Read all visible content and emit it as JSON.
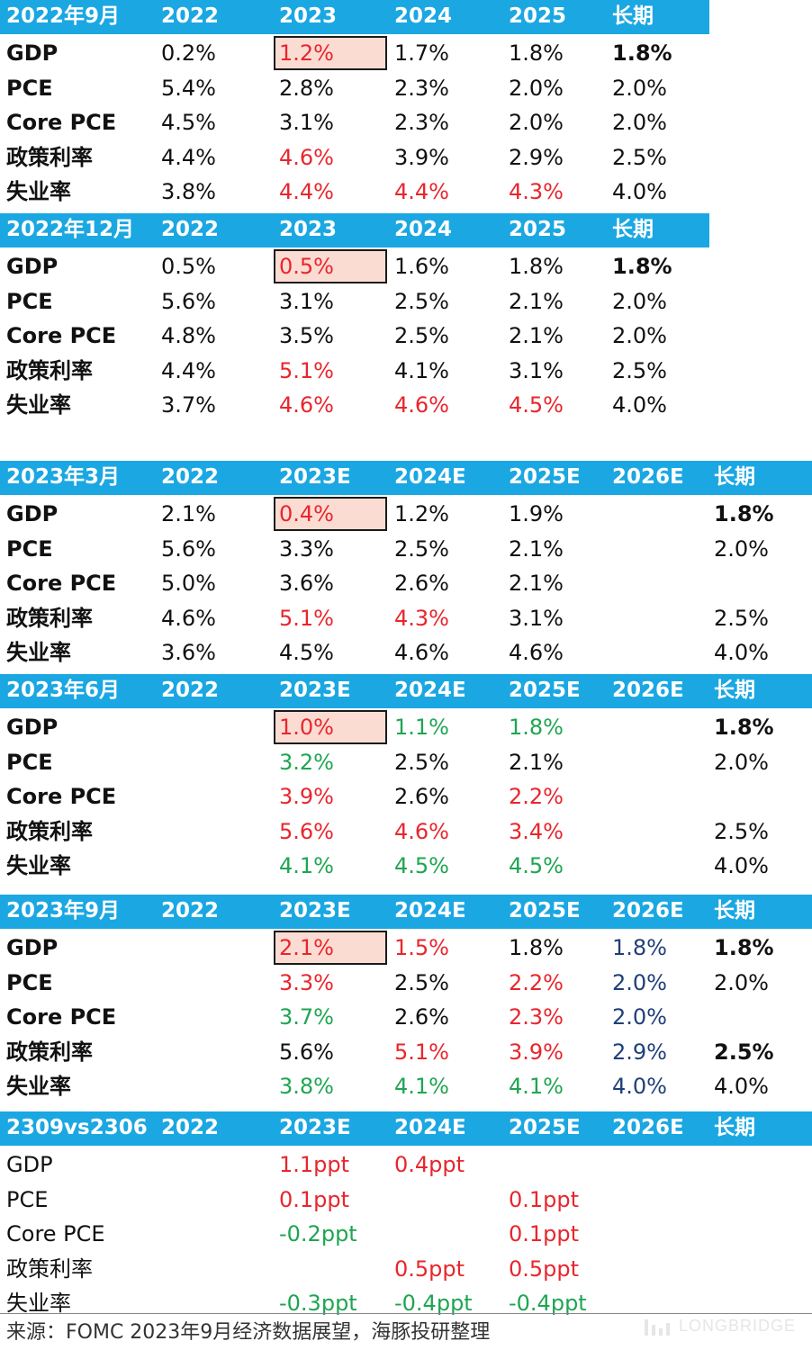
{
  "colors": {
    "header_bg": "#1ba7e2",
    "red": "#e8262d",
    "green": "#1fa552",
    "navy": "#1f3f7a",
    "highlight_fill": "#fbdcd3"
  },
  "tables": [
    {
      "header": [
        "2022年9月",
        "2022",
        "2023",
        "2024",
        "2025",
        "长期"
      ],
      "rows": [
        {
          "label": "GDP",
          "cells": [
            {
              "v": "0.2%"
            },
            {
              "v": "1.2%",
              "c": "red"
            },
            {
              "v": "1.7%"
            },
            {
              "v": "1.8%"
            },
            {
              "v": "1.8%",
              "b": true
            }
          ]
        },
        {
          "label": "PCE",
          "cells": [
            {
              "v": "5.4%"
            },
            {
              "v": "2.8%"
            },
            {
              "v": "2.3%"
            },
            {
              "v": "2.0%"
            },
            {
              "v": "2.0%"
            }
          ]
        },
        {
          "label": "Core PCE",
          "cells": [
            {
              "v": "4.5%"
            },
            {
              "v": "3.1%"
            },
            {
              "v": "2.3%"
            },
            {
              "v": "2.0%"
            },
            {
              "v": "2.0%"
            }
          ]
        },
        {
          "label": "政策利率",
          "cells": [
            {
              "v": "4.4%"
            },
            {
              "v": "4.6%",
              "c": "red"
            },
            {
              "v": "3.9%"
            },
            {
              "v": "2.9%"
            },
            {
              "v": "2.5%"
            }
          ]
        },
        {
          "label": "失业率",
          "cells": [
            {
              "v": "3.8%"
            },
            {
              "v": "4.4%",
              "c": "red"
            },
            {
              "v": "4.4%",
              "c": "red"
            },
            {
              "v": "4.3%",
              "c": "red"
            },
            {
              "v": "4.0%"
            }
          ]
        }
      ]
    },
    {
      "header": [
        "2022年12月",
        "2022",
        "2023",
        "2024",
        "2025",
        "长期"
      ],
      "rows": [
        {
          "label": "GDP",
          "cells": [
            {
              "v": "0.5%"
            },
            {
              "v": "0.5%",
              "c": "red"
            },
            {
              "v": "1.6%"
            },
            {
              "v": "1.8%"
            },
            {
              "v": "1.8%",
              "b": true
            }
          ]
        },
        {
          "label": "PCE",
          "cells": [
            {
              "v": "5.6%"
            },
            {
              "v": "3.1%"
            },
            {
              "v": "2.5%"
            },
            {
              "v": "2.1%"
            },
            {
              "v": "2.0%"
            }
          ]
        },
        {
          "label": "Core PCE",
          "cells": [
            {
              "v": "4.8%"
            },
            {
              "v": "3.5%"
            },
            {
              "v": "2.5%"
            },
            {
              "v": "2.1%"
            },
            {
              "v": "2.0%"
            }
          ]
        },
        {
          "label": "政策利率",
          "cells": [
            {
              "v": "4.4%"
            },
            {
              "v": "5.1%",
              "c": "red"
            },
            {
              "v": "4.1%"
            },
            {
              "v": "3.1%"
            },
            {
              "v": "2.5%"
            }
          ]
        },
        {
          "label": "失业率",
          "cells": [
            {
              "v": "3.7%"
            },
            {
              "v": "4.6%",
              "c": "red"
            },
            {
              "v": "4.6%",
              "c": "red"
            },
            {
              "v": "4.5%",
              "c": "red"
            },
            {
              "v": "4.0%"
            }
          ]
        }
      ]
    },
    {
      "header": [
        "2023年3月",
        "2022",
        "2023E",
        "2024E",
        "2025E",
        "2026E",
        "长期"
      ],
      "rows": [
        {
          "label": "GDP",
          "cells": [
            {
              "v": "2.1%"
            },
            {
              "v": "0.4%",
              "c": "red"
            },
            {
              "v": "1.2%"
            },
            {
              "v": "1.9%"
            },
            {
              "v": ""
            },
            {
              "v": "1.8%",
              "b": true
            }
          ]
        },
        {
          "label": "PCE",
          "cells": [
            {
              "v": "5.6%"
            },
            {
              "v": "3.3%"
            },
            {
              "v": "2.5%"
            },
            {
              "v": "2.1%"
            },
            {
              "v": ""
            },
            {
              "v": "2.0%"
            }
          ]
        },
        {
          "label": "Core PCE",
          "cells": [
            {
              "v": "5.0%"
            },
            {
              "v": "3.6%"
            },
            {
              "v": "2.6%"
            },
            {
              "v": "2.1%"
            },
            {
              "v": ""
            },
            {
              "v": ""
            }
          ]
        },
        {
          "label": "政策利率",
          "cells": [
            {
              "v": "4.6%"
            },
            {
              "v": "5.1%",
              "c": "red"
            },
            {
              "v": "4.3%",
              "c": "red"
            },
            {
              "v": "3.1%"
            },
            {
              "v": ""
            },
            {
              "v": "2.5%"
            }
          ]
        },
        {
          "label": "失业率",
          "cells": [
            {
              "v": "3.6%"
            },
            {
              "v": "4.5%"
            },
            {
              "v": "4.6%"
            },
            {
              "v": "4.6%"
            },
            {
              "v": ""
            },
            {
              "v": "4.0%"
            }
          ]
        }
      ]
    },
    {
      "header": [
        "2023年6月",
        "2022",
        "2023E",
        "2024E",
        "2025E",
        "2026E",
        "长期"
      ],
      "rows": [
        {
          "label": "GDP",
          "cells": [
            {
              "v": ""
            },
            {
              "v": "1.0%",
              "c": "red"
            },
            {
              "v": "1.1%",
              "c": "green"
            },
            {
              "v": "1.8%",
              "c": "green"
            },
            {
              "v": ""
            },
            {
              "v": "1.8%",
              "b": true
            }
          ]
        },
        {
          "label": "PCE",
          "cells": [
            {
              "v": ""
            },
            {
              "v": "3.2%",
              "c": "green"
            },
            {
              "v": "2.5%"
            },
            {
              "v": "2.1%"
            },
            {
              "v": ""
            },
            {
              "v": "2.0%"
            }
          ]
        },
        {
          "label": "Core PCE",
          "cells": [
            {
              "v": ""
            },
            {
              "v": "3.9%",
              "c": "red"
            },
            {
              "v": "2.6%"
            },
            {
              "v": "2.2%",
              "c": "red"
            },
            {
              "v": ""
            },
            {
              "v": ""
            }
          ]
        },
        {
          "label": "政策利率",
          "cells": [
            {
              "v": ""
            },
            {
              "v": "5.6%",
              "c": "red"
            },
            {
              "v": "4.6%",
              "c": "red"
            },
            {
              "v": "3.4%",
              "c": "red"
            },
            {
              "v": ""
            },
            {
              "v": "2.5%"
            }
          ]
        },
        {
          "label": "失业率",
          "cells": [
            {
              "v": ""
            },
            {
              "v": "4.1%",
              "c": "green"
            },
            {
              "v": "4.5%",
              "c": "green"
            },
            {
              "v": "4.5%",
              "c": "green"
            },
            {
              "v": ""
            },
            {
              "v": "4.0%"
            }
          ]
        }
      ]
    },
    {
      "header": [
        "2023年9月",
        "2022",
        "2023E",
        "2024E",
        "2025E",
        "2026E",
        "长期"
      ],
      "rows": [
        {
          "label": "GDP",
          "cells": [
            {
              "v": ""
            },
            {
              "v": "2.1%",
              "c": "red"
            },
            {
              "v": "1.5%",
              "c": "red"
            },
            {
              "v": "1.8%"
            },
            {
              "v": "1.8%",
              "c": "navy"
            },
            {
              "v": "1.8%",
              "b": true
            }
          ]
        },
        {
          "label": "PCE",
          "cells": [
            {
              "v": ""
            },
            {
              "v": "3.3%",
              "c": "red"
            },
            {
              "v": "2.5%"
            },
            {
              "v": "2.2%",
              "c": "red"
            },
            {
              "v": "2.0%",
              "c": "navy"
            },
            {
              "v": "2.0%"
            }
          ]
        },
        {
          "label": "Core PCE",
          "cells": [
            {
              "v": ""
            },
            {
              "v": "3.7%",
              "c": "green"
            },
            {
              "v": "2.6%"
            },
            {
              "v": "2.3%",
              "c": "red"
            },
            {
              "v": "2.0%",
              "c": "navy"
            },
            {
              "v": ""
            }
          ]
        },
        {
          "label": "政策利率",
          "cells": [
            {
              "v": ""
            },
            {
              "v": "5.6%"
            },
            {
              "v": "5.1%",
              "c": "red"
            },
            {
              "v": "3.9%",
              "c": "red"
            },
            {
              "v": "2.9%",
              "c": "navy"
            },
            {
              "v": "2.5%",
              "b": true
            }
          ]
        },
        {
          "label": "失业率",
          "cells": [
            {
              "v": ""
            },
            {
              "v": "3.8%",
              "c": "green"
            },
            {
              "v": "4.1%",
              "c": "green"
            },
            {
              "v": "4.1%",
              "c": "green"
            },
            {
              "v": "4.0%",
              "c": "navy"
            },
            {
              "v": "4.0%"
            }
          ]
        }
      ]
    },
    {
      "header": [
        "2309vs2306",
        "2022",
        "2023E",
        "2024E",
        "2025E",
        "2026E",
        "长期"
      ],
      "plain": true,
      "rows": [
        {
          "label": "GDP",
          "cells": [
            {
              "v": ""
            },
            {
              "v": "1.1ppt",
              "c": "red"
            },
            {
              "v": "0.4ppt",
              "c": "red"
            },
            {
              "v": ""
            },
            {
              "v": ""
            },
            {
              "v": ""
            }
          ]
        },
        {
          "label": "PCE",
          "cells": [
            {
              "v": ""
            },
            {
              "v": "0.1ppt",
              "c": "red"
            },
            {
              "v": ""
            },
            {
              "v": "0.1ppt",
              "c": "red"
            },
            {
              "v": ""
            },
            {
              "v": ""
            }
          ]
        },
        {
          "label": "Core PCE",
          "cells": [
            {
              "v": ""
            },
            {
              "v": "-0.2ppt",
              "c": "green"
            },
            {
              "v": ""
            },
            {
              "v": "0.1ppt",
              "c": "red"
            },
            {
              "v": ""
            },
            {
              "v": ""
            }
          ]
        },
        {
          "label": "政策利率",
          "cells": [
            {
              "v": ""
            },
            {
              "v": ""
            },
            {
              "v": "0.5ppt",
              "c": "red"
            },
            {
              "v": "0.5ppt",
              "c": "red"
            },
            {
              "v": ""
            },
            {
              "v": ""
            }
          ]
        },
        {
          "label": "失业率",
          "cells": [
            {
              "v": ""
            },
            {
              "v": "-0.3ppt",
              "c": "green"
            },
            {
              "v": "-0.4ppt",
              "c": "green"
            },
            {
              "v": "-0.4ppt",
              "c": "green"
            },
            {
              "v": ""
            },
            {
              "v": ""
            }
          ]
        }
      ]
    }
  ],
  "source": "来源：FOMC 2023年9月经济数据展望，海豚投研整理",
  "watermark": "LONGBRIDGE"
}
